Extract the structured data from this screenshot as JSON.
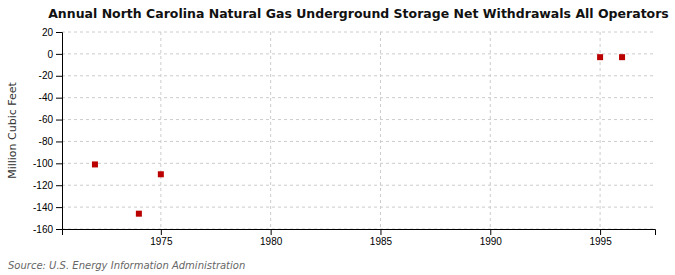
{
  "chart_data": {
    "type": "scatter",
    "title": "Annual North Carolina Natural Gas Underground Storage Net Withdrawals All Operators",
    "ylabel": "Million Cubic Feet",
    "annotations": [
      "Source: U.S. Energy Information Administration"
    ],
    "x": [
      1972,
      1974,
      1975,
      1995,
      1996
    ],
    "values": [
      -101,
      -146,
      -110,
      -3,
      -3
    ],
    "color": "#bb0000",
    "marker": "square",
    "xlim": [
      1970.5,
      1997.5
    ],
    "ylim": [
      -160,
      20
    ],
    "xticks": [
      1975,
      1980,
      1985,
      1990,
      1995
    ],
    "yticks": [
      20,
      0,
      -20,
      -40,
      -60,
      -80,
      -100,
      -120,
      -140,
      -160
    ],
    "grid": true
  }
}
